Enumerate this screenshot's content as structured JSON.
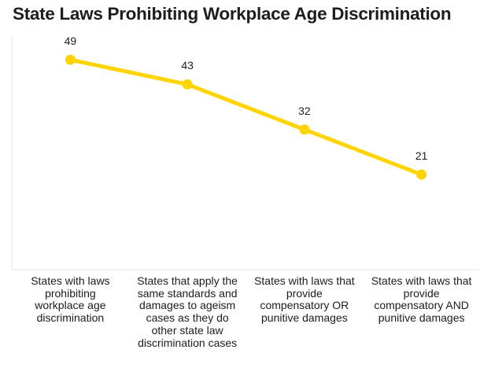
{
  "title": "State Laws Prohibiting Workplace Age Discrimination",
  "colors": {
    "accent": "#ffd400",
    "axis": "#e3e3e3",
    "text": "#1c1c1c",
    "background": "#ffffff"
  },
  "chart_data": {
    "type": "line",
    "title": "State Laws Prohibiting Workplace Age Discrimination",
    "categories": [
      "States with laws\nprohibiting\nworkplace age\ndiscrimination",
      "States that apply the\nsame standards and\ndamages to ageism\ncases as they do\nother state law\ndiscrimination cases",
      "States with laws that\nprovide\ncompensatory OR\npunitive damages",
      "States with laws that\nprovide\ncompensatory AND\npunitive damages"
    ],
    "values": [
      49,
      43,
      32,
      21
    ],
    "point_labels": [
      "49",
      "43",
      "32",
      "21"
    ],
    "xlabel": "",
    "ylabel": "",
    "ylim": [
      0,
      55
    ],
    "grid": false,
    "legend": "none",
    "marker": "circle",
    "line_color": "#ffd400"
  }
}
